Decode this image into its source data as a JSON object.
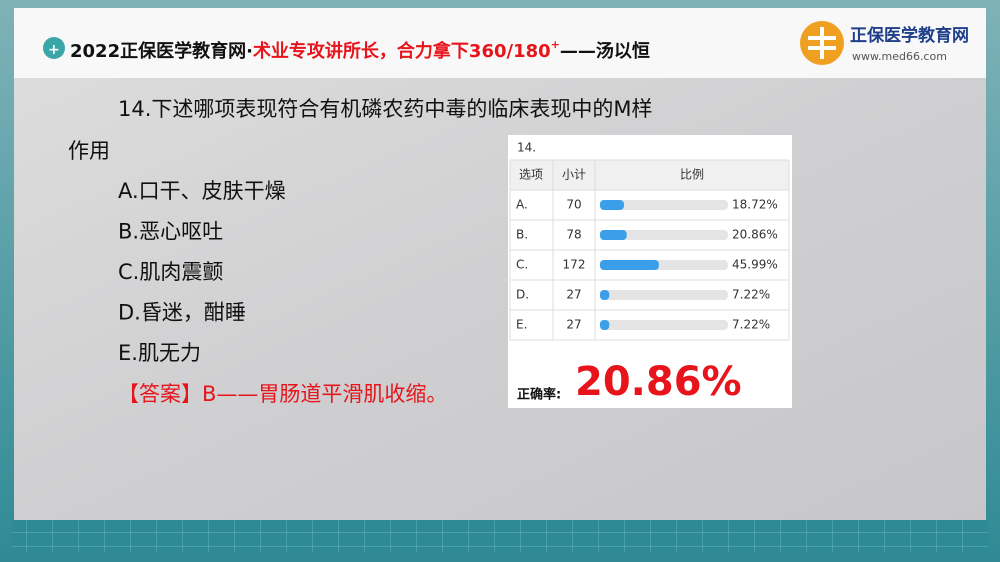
{
  "header": {
    "lead": "2022正保医学教育网·",
    "slogan": "术业专攻讲所长，合力拿下360/180",
    "sup": "+",
    "teacher": "——汤以恒",
    "logo_name": "正保医学教育网",
    "logo_url": "www.med66.com"
  },
  "question": {
    "line1": "14.下述哪项表现符合有机磷农药中毒的临床表现中的M样",
    "line2": "作用",
    "options": [
      "A.口干、皮肤干燥",
      "B.恶心呕吐",
      "C.肌肉震颤",
      "D.昏迷，酣睡",
      "E.肌无力"
    ],
    "answer": "【答案】B——胃肠道平滑肌收缩。"
  },
  "poll": {
    "title": "14.",
    "headers": [
      "选项",
      "小计",
      "比例"
    ],
    "options": [
      "A.",
      "B.",
      "C.",
      "D.",
      "E."
    ],
    "counts": [
      70,
      78,
      172,
      27,
      27
    ],
    "values": [
      18.72,
      20.86,
      45.99,
      7.22,
      7.22
    ],
    "value_labels": [
      "18.72%",
      "20.86%",
      "45.99%",
      "7.22%",
      "7.22%"
    ],
    "xlim": [
      0,
      100
    ],
    "bar_color": "#3b9ee8",
    "correct_label": "正确率:",
    "correct_rate": "20.86%"
  }
}
